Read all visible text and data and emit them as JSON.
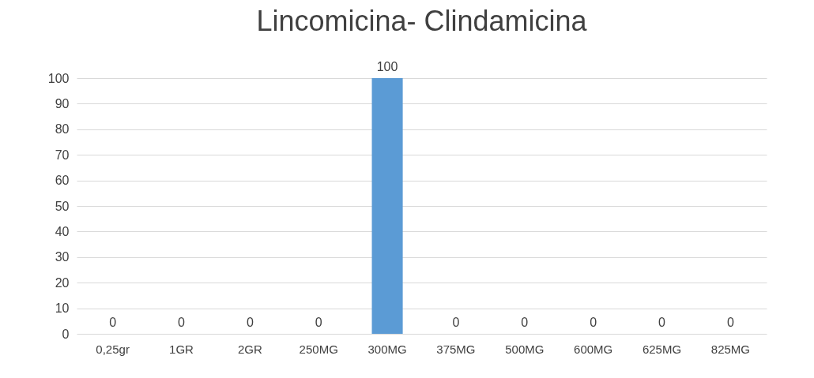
{
  "chart_data": {
    "type": "bar",
    "title": "Lincomicina- Clindamicina",
    "categories": [
      "0,25gr",
      "1GR",
      "2GR",
      "250MG",
      "300MG",
      "375MG",
      "500MG",
      "600MG",
      "625MG",
      "825MG"
    ],
    "values": [
      0,
      0,
      0,
      0,
      100,
      0,
      0,
      0,
      0,
      0
    ],
    "color": "#5b9bd5",
    "ylim": [
      0,
      100
    ],
    "yticks": [
      0,
      10,
      20,
      30,
      40,
      50,
      60,
      70,
      80,
      90,
      100
    ],
    "grid": "y",
    "data_labels": true
  }
}
